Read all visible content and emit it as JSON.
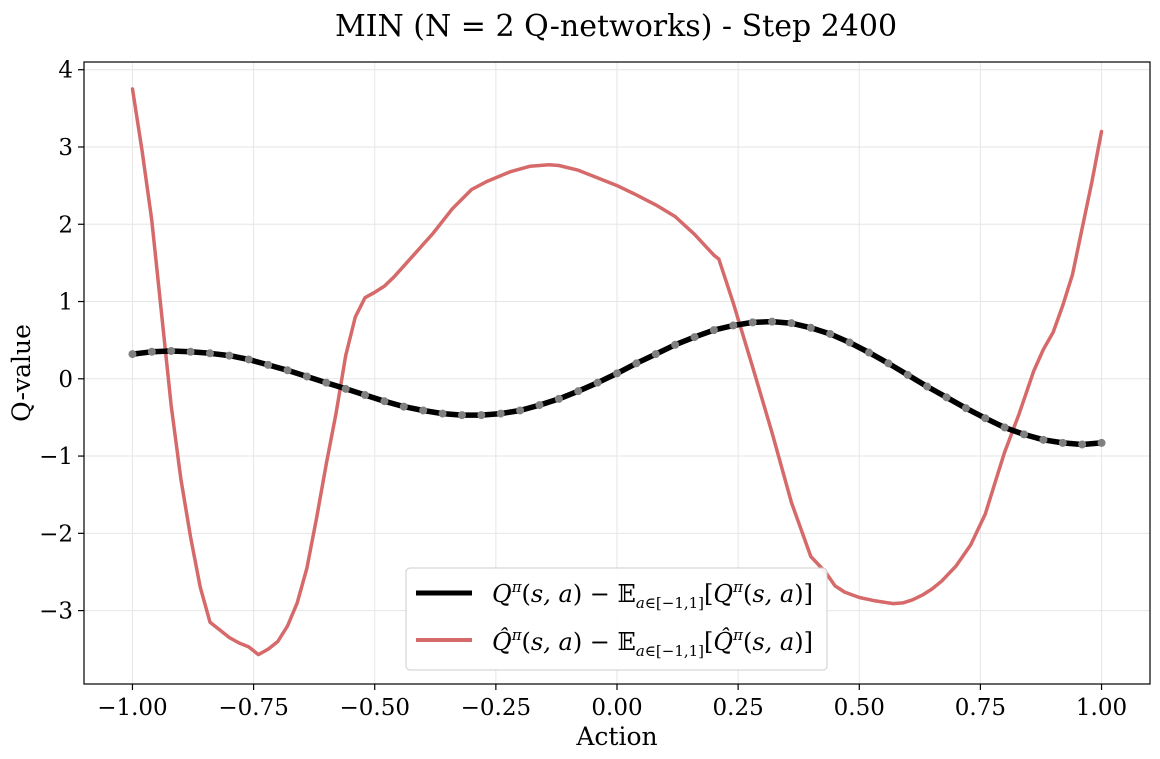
{
  "chart_data": {
    "type": "line",
    "title": "MIN (N = 2 Q-networks) - Step 2400",
    "xlabel": "Action",
    "ylabel": "Q-value",
    "xlim": [
      -1.1,
      1.1
    ],
    "ylim": [
      -3.95,
      4.1
    ],
    "xticks": [
      -1.0,
      -0.75,
      -0.5,
      -0.25,
      0.0,
      0.25,
      0.5,
      0.75,
      1.0
    ],
    "xtick_labels": [
      "−1.00",
      "−0.75",
      "−0.50",
      "−0.25",
      "0.00",
      "0.25",
      "0.50",
      "0.75",
      "1.00"
    ],
    "yticks": [
      -3,
      -2,
      -1,
      0,
      1,
      2,
      3,
      4
    ],
    "ytick_labels": [
      "−3",
      "−2",
      "−1",
      "0",
      "1",
      "2",
      "3",
      "4"
    ],
    "grid": true,
    "legend_position": "lower-center",
    "series": [
      {
        "name": "Qπ(s,a) − E a∈[−1,1] [Qπ(s,a)]",
        "color": "#000000",
        "marker_color": "#808080",
        "x": [
          -1.0,
          -0.96,
          -0.92,
          -0.88,
          -0.84,
          -0.8,
          -0.76,
          -0.72,
          -0.68,
          -0.64,
          -0.6,
          -0.56,
          -0.52,
          -0.48,
          -0.44,
          -0.4,
          -0.36,
          -0.32,
          -0.28,
          -0.24,
          -0.2,
          -0.16,
          -0.12,
          -0.08,
          -0.04,
          0.0,
          0.04,
          0.08,
          0.12,
          0.16,
          0.2,
          0.24,
          0.28,
          0.32,
          0.36,
          0.4,
          0.44,
          0.48,
          0.52,
          0.56,
          0.6,
          0.64,
          0.68,
          0.72,
          0.76,
          0.8,
          0.84,
          0.88,
          0.92,
          0.96,
          1.0
        ],
        "y": [
          0.32,
          0.35,
          0.36,
          0.35,
          0.33,
          0.3,
          0.25,
          0.18,
          0.11,
          0.03,
          -0.05,
          -0.13,
          -0.21,
          -0.29,
          -0.36,
          -0.41,
          -0.45,
          -0.47,
          -0.47,
          -0.45,
          -0.41,
          -0.34,
          -0.26,
          -0.16,
          -0.05,
          0.07,
          0.2,
          0.32,
          0.44,
          0.54,
          0.63,
          0.69,
          0.73,
          0.74,
          0.72,
          0.66,
          0.58,
          0.47,
          0.34,
          0.2,
          0.05,
          -0.1,
          -0.24,
          -0.38,
          -0.51,
          -0.63,
          -0.72,
          -0.79,
          -0.83,
          -0.85,
          -0.83
        ]
      },
      {
        "name": "Q̂π(s,a) − E a∈[−1,1] [Q̂π(s,a)]",
        "color": "#d66a6a",
        "x": [
          -1.0,
          -0.98,
          -0.96,
          -0.94,
          -0.92,
          -0.9,
          -0.88,
          -0.86,
          -0.84,
          -0.82,
          -0.8,
          -0.78,
          -0.76,
          -0.74,
          -0.72,
          -0.7,
          -0.68,
          -0.66,
          -0.64,
          -0.62,
          -0.6,
          -0.58,
          -0.56,
          -0.54,
          -0.52,
          -0.5,
          -0.48,
          -0.46,
          -0.42,
          -0.38,
          -0.34,
          -0.3,
          -0.27,
          -0.22,
          -0.18,
          -0.14,
          -0.12,
          -0.08,
          -0.04,
          0.0,
          0.04,
          0.08,
          0.12,
          0.16,
          0.2,
          0.21,
          0.24,
          0.28,
          0.32,
          0.36,
          0.4,
          0.43,
          0.45,
          0.47,
          0.5,
          0.53,
          0.55,
          0.57,
          0.59,
          0.61,
          0.63,
          0.65,
          0.67,
          0.7,
          0.73,
          0.76,
          0.78,
          0.8,
          0.83,
          0.86,
          0.88,
          0.9,
          0.92,
          0.94,
          0.96,
          0.98,
          1.0
        ],
        "y": [
          3.75,
          2.95,
          2.05,
          0.85,
          -0.35,
          -1.3,
          -2.05,
          -2.7,
          -3.15,
          -3.25,
          -3.35,
          -3.42,
          -3.47,
          -3.57,
          -3.5,
          -3.4,
          -3.2,
          -2.9,
          -2.45,
          -1.8,
          -1.1,
          -0.45,
          0.3,
          0.8,
          1.05,
          1.12,
          1.2,
          1.32,
          1.6,
          1.88,
          2.2,
          2.45,
          2.55,
          2.68,
          2.75,
          2.77,
          2.76,
          2.7,
          2.6,
          2.5,
          2.38,
          2.25,
          2.1,
          1.87,
          1.6,
          1.55,
          0.98,
          0.15,
          -0.7,
          -1.6,
          -2.3,
          -2.5,
          -2.68,
          -2.76,
          -2.83,
          -2.87,
          -2.89,
          -2.91,
          -2.9,
          -2.86,
          -2.8,
          -2.72,
          -2.62,
          -2.42,
          -2.15,
          -1.75,
          -1.35,
          -0.95,
          -0.45,
          0.1,
          0.38,
          0.6,
          0.95,
          1.35,
          1.95,
          2.55,
          3.2
        ]
      }
    ]
  }
}
